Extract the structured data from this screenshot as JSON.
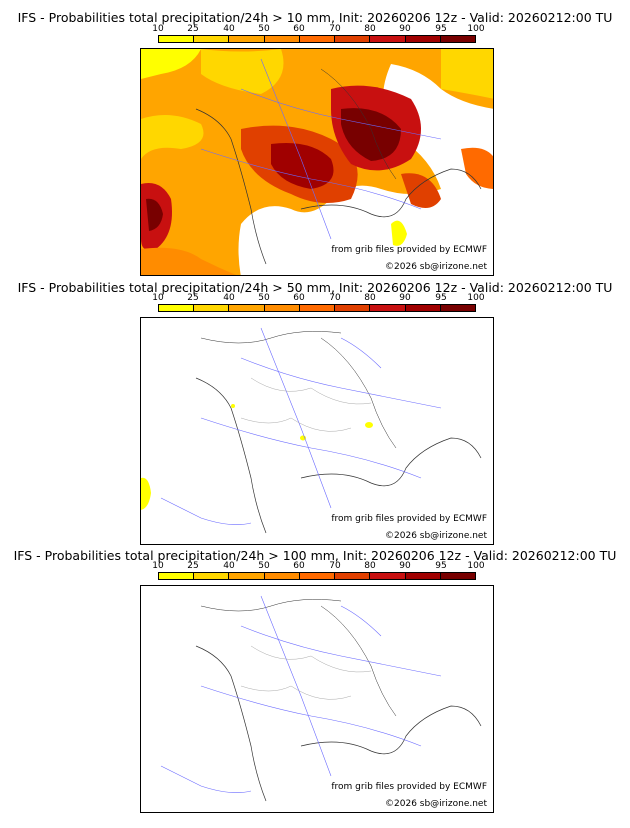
{
  "scale_labels": [
    "10",
    "25",
    "40",
    "50",
    "60",
    "70",
    "80",
    "90",
    "95",
    "100"
  ],
  "scale_colors": [
    "#ffff00",
    "#ffd700",
    "#ffa500",
    "#ff8c00",
    "#ff6a00",
    "#e04000",
    "#c81010",
    "#a00000",
    "#780000"
  ],
  "credit_source": "from grib files provided by ECMWF",
  "credit_copy": "©2026 sb@irizone.net",
  "panels": [
    {
      "title": "IFS - Probabilities total precipitation/24h > 10 mm, Init: 20260206 12z - Valid: 20260212:00 TU"
    },
    {
      "title": "IFS - Probabilities total precipitation/24h > 50 mm, Init: 20260206 12z - Valid: 20260212:00 TU"
    },
    {
      "title": "IFS - Probabilities total precipitation/24h > 100 mm, Init: 20260206 12z - Valid: 20260212:00 TU"
    }
  ]
}
